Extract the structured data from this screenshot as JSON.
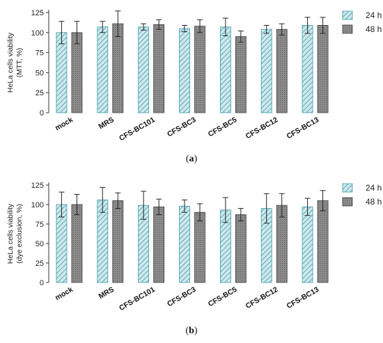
{
  "colors": {
    "series_24h_fill": "#cfe8ec",
    "series_24h_hatch": "#3a9aa8",
    "series_48h_fill": "#8e8e8e",
    "series_48h_dots": "#5a5a5a",
    "axis": "#333333",
    "errorbar": "#222222"
  },
  "chart_data": [
    {
      "type": "bar",
      "panel": "a",
      "panel_label": {
        "open": "(",
        "letter": "a",
        "close": ")"
      },
      "ylabel": [
        "HeLa cells viability",
        "(MTT, %)"
      ],
      "ylim": [
        0,
        125
      ],
      "yticks": [
        "0",
        "25",
        "50",
        "75",
        "100",
        "125"
      ],
      "grid": false,
      "legend_position": "top-right",
      "categories": [
        "mock",
        "MRS",
        "CFS-BC101",
        "CFS-BC3",
        "CFS-BC5",
        "CFS-BC12",
        "CFS-BC13"
      ],
      "series": [
        {
          "name": "24 h",
          "values": [
            100,
            107,
            107,
            105,
            107,
            104,
            109
          ],
          "errors": [
            14,
            7,
            4,
            4,
            11,
            5,
            10
          ]
        },
        {
          "name": "48 h",
          "values": [
            100,
            111,
            110,
            108,
            95,
            104,
            109
          ],
          "errors": [
            14,
            16,
            6,
            8,
            7,
            7,
            10
          ]
        }
      ]
    },
    {
      "type": "bar",
      "panel": "b",
      "panel_label": {
        "open": "(",
        "letter": "b",
        "close": ")"
      },
      "ylabel": [
        "HeLa cells viability",
        "(dye exclusion, %)"
      ],
      "ylim": [
        0,
        125
      ],
      "yticks": [
        "0",
        "25",
        "50",
        "75",
        "100",
        "125"
      ],
      "grid": false,
      "legend_position": "top-right",
      "categories": [
        "mock",
        "MRS",
        "CFS-BC101",
        "CFS-BC3",
        "CFS-BC5",
        "CFS-BC12",
        "CFS-BC13"
      ],
      "series": [
        {
          "name": "24 h",
          "values": [
            100,
            106,
            99,
            98,
            93,
            95,
            97
          ],
          "errors": [
            16,
            16,
            18,
            8,
            16,
            19,
            11
          ]
        },
        {
          "name": "48 h",
          "values": [
            100,
            105,
            97,
            90,
            87,
            99,
            105
          ],
          "errors": [
            13,
            10,
            10,
            11,
            8,
            15,
            13
          ]
        }
      ]
    }
  ]
}
